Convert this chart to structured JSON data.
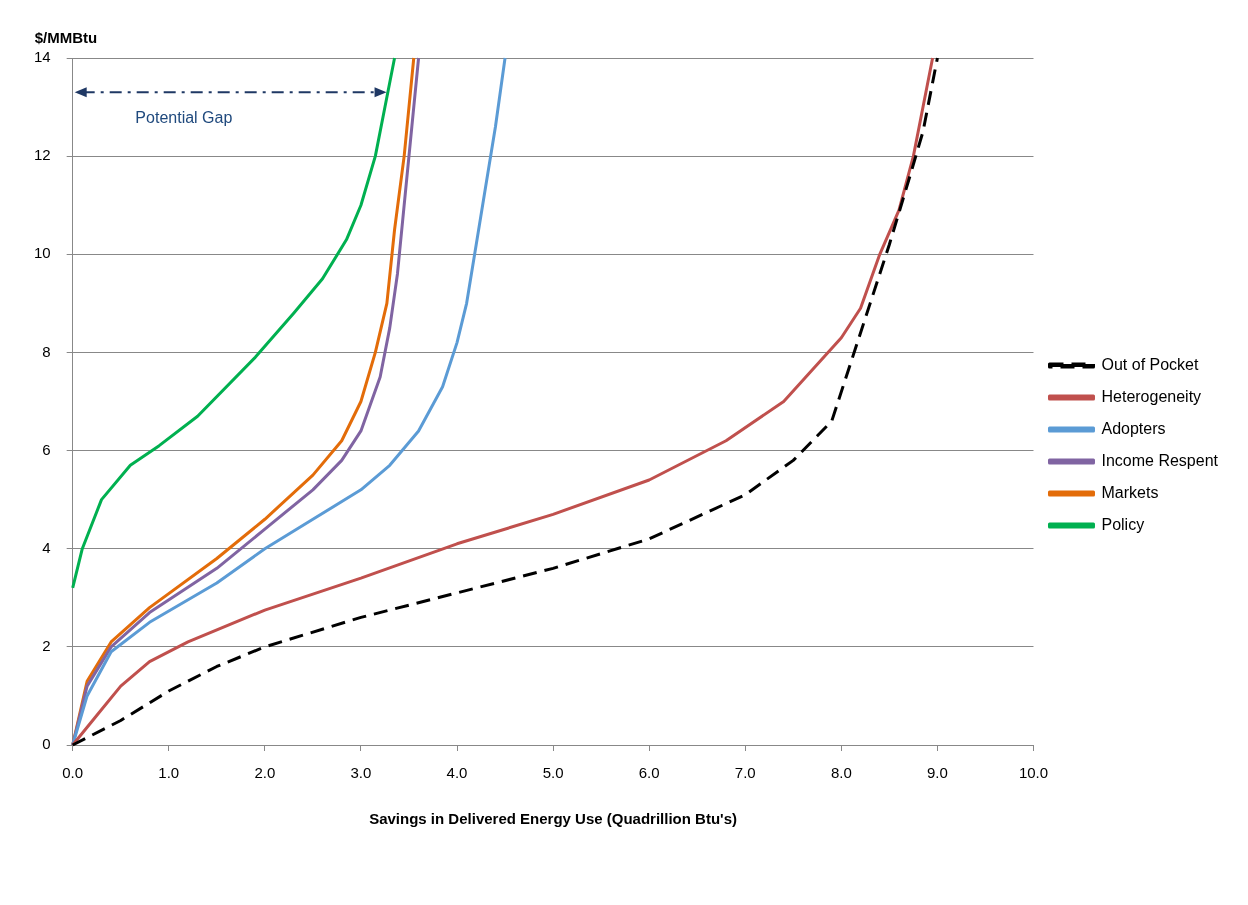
{
  "chart_data": {
    "type": "line",
    "xlabel": "Savings in Delivered Energy Use (Quadrillion Btu's)",
    "ylabel": "$/MMBtu",
    "xlim": [
      0,
      10
    ],
    "xticks": [
      {
        "value": 0,
        "label": "0.0"
      },
      {
        "value": 1,
        "label": "1.0"
      },
      {
        "value": 2,
        "label": "2.0"
      },
      {
        "value": 3,
        "label": "3.0"
      },
      {
        "value": 4,
        "label": "4.0"
      },
      {
        "value": 5,
        "label": "5.0"
      },
      {
        "value": 6,
        "label": "6.0"
      },
      {
        "value": 7,
        "label": "7.0"
      },
      {
        "value": 8,
        "label": "8.0"
      },
      {
        "value": 9,
        "label": "9.0"
      },
      {
        "value": 10,
        "label": "10.0"
      }
    ],
    "ylim": [
      0,
      14
    ],
    "yticks": [
      0,
      2,
      4,
      6,
      8,
      10,
      12,
      14
    ],
    "grid": "y",
    "legend": "right",
    "marker": "none",
    "annotations": [
      "Potential Gap"
    ],
    "series": [
      {
        "name": "Out of Pocket",
        "color": "#000000",
        "line_style": "dashed",
        "x": [
          0,
          0.5,
          1,
          1.5,
          2,
          3,
          4,
          5,
          6,
          7,
          7.5,
          7.9,
          8.1,
          8.3,
          8.5,
          8.7,
          8.85,
          8.95,
          9.0
        ],
        "values": [
          0,
          0.5,
          1.1,
          1.6,
          2.0,
          2.6,
          3.1,
          3.6,
          4.2,
          5.1,
          5.8,
          6.6,
          7.8,
          9.0,
          10.2,
          11.5,
          12.5,
          13.5,
          14
        ]
      },
      {
        "name": "Heterogeneity",
        "color": "#c0504d",
        "line_style": "solid",
        "x": [
          0,
          0.25,
          0.5,
          0.8,
          1.2,
          2,
          3,
          4,
          5,
          6,
          6.8,
          7.4,
          8.0,
          8.2,
          8.4,
          8.6,
          8.75,
          8.85,
          8.95
        ],
        "values": [
          0,
          0.6,
          1.2,
          1.7,
          2.1,
          2.75,
          3.4,
          4.1,
          4.7,
          5.4,
          6.2,
          7.0,
          8.3,
          8.9,
          10.0,
          10.9,
          12.0,
          13.0,
          14
        ]
      },
      {
        "name": "Adopters",
        "color": "#5b9bd5",
        "line_style": "solid",
        "x": [
          0,
          0.15,
          0.4,
          0.8,
          1.5,
          2,
          2.5,
          3,
          3.3,
          3.6,
          3.85,
          4.0,
          4.1,
          4.2,
          4.3,
          4.4,
          4.5
        ],
        "values": [
          0,
          1.0,
          1.9,
          2.5,
          3.3,
          4.0,
          4.6,
          5.2,
          5.7,
          6.4,
          7.3,
          8.2,
          9.0,
          10.2,
          11.4,
          12.6,
          14
        ]
      },
      {
        "name": "Income Respent",
        "color": "#8064a2",
        "line_style": "solid",
        "x": [
          0,
          0.15,
          0.4,
          0.8,
          1.5,
          2,
          2.5,
          2.8,
          3.0,
          3.2,
          3.3,
          3.38,
          3.45,
          3.53,
          3.6
        ],
        "values": [
          0,
          1.2,
          2.0,
          2.7,
          3.6,
          4.4,
          5.2,
          5.8,
          6.4,
          7.5,
          8.5,
          9.6,
          11,
          12.6,
          14
        ]
      },
      {
        "name": "Markets",
        "color": "#e36c09",
        "line_style": "solid",
        "x": [
          0,
          0.15,
          0.4,
          0.8,
          1.5,
          2,
          2.5,
          2.8,
          3.0,
          3.15,
          3.27,
          3.35,
          3.45,
          3.55
        ],
        "values": [
          0,
          1.3,
          2.1,
          2.8,
          3.8,
          4.6,
          5.5,
          6.2,
          7.0,
          8.0,
          9.0,
          10.5,
          12,
          14
        ]
      },
      {
        "name": "Policy",
        "color": "#00b050",
        "line_style": "solid",
        "x": [
          0,
          0.1,
          0.3,
          0.6,
          0.9,
          1.3,
          1.9,
          2.3,
          2.6,
          2.85,
          3.0,
          3.15,
          3.25,
          3.35
        ],
        "values": [
          3.2,
          4.0,
          5.0,
          5.7,
          6.1,
          6.7,
          7.9,
          8.8,
          9.5,
          10.3,
          11.0,
          12.0,
          13.0,
          14
        ]
      }
    ]
  }
}
